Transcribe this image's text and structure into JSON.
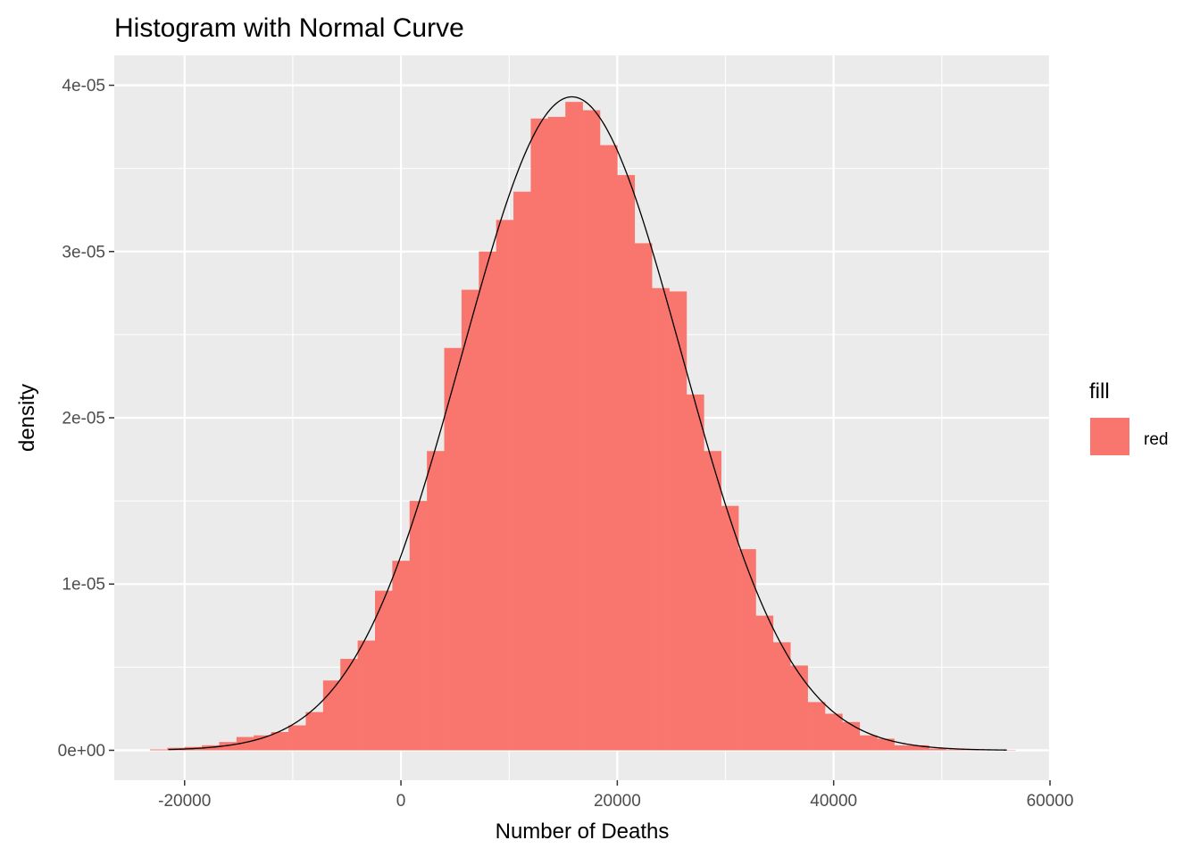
{
  "chart_data": {
    "type": "bar",
    "title": "Histogram with Normal Curve",
    "xlabel": "Number of Deaths",
    "ylabel": "density",
    "xlim": [
      -26500,
      60000
    ],
    "ylim": [
      -1.8e-06,
      4.18e-05
    ],
    "x_ticks": [
      -20000,
      0,
      20000,
      40000,
      60000
    ],
    "x_tick_labels": [
      "-20000",
      "0",
      "20000",
      "40000",
      "60000"
    ],
    "y_ticks": [
      0,
      1e-05,
      2e-05,
      3e-05,
      4e-05
    ],
    "y_tick_labels": [
      "0e+00",
      "1e-05",
      "2e-05",
      "3e-05",
      "4e-05"
    ],
    "grid": true,
    "legend": {
      "title": "fill",
      "position": "right",
      "items": [
        {
          "label": "red",
          "color": "#F8766D"
        }
      ]
    },
    "colors": {
      "bars": "#F8766D",
      "curve": "#000000",
      "panel": "#EBEBEB",
      "grid": "#FFFFFF"
    },
    "bin_width": 1600,
    "histogram": {
      "bin_start": [
        -23200,
        -21600,
        -20000,
        -18400,
        -16800,
        -15200,
        -13600,
        -12000,
        -10400,
        -8800,
        -7200,
        -5600,
        -4000,
        -2400,
        -800,
        800,
        2400,
        4000,
        5600,
        7200,
        8800,
        10400,
        12000,
        13600,
        15200,
        16800,
        18400,
        20000,
        21600,
        23200,
        24800,
        26400,
        28000,
        29600,
        31200,
        32800,
        34400,
        36000,
        37600,
        39200,
        40800,
        42400,
        44000,
        45600,
        47200,
        48800,
        50400,
        52000,
        53600,
        55200
      ],
      "density": [
        5e-08,
        1.5e-07,
        2e-07,
        3e-07,
        5e-07,
        8e-07,
        9e-07,
        1.1e-06,
        1.5e-06,
        2.3e-06,
        4.2e-06,
        5.5e-06,
        6.6e-06,
        9.6e-06,
        1.14e-05,
        1.5e-05,
        1.8e-05,
        2.42e-05,
        2.77e-05,
        3e-05,
        3.19e-05,
        3.36e-05,
        3.8e-05,
        3.81e-05,
        3.9e-05,
        3.85e-05,
        3.64e-05,
        3.46e-05,
        3.05e-05,
        2.78e-05,
        2.76e-05,
        2.14e-05,
        1.8e-05,
        1.47e-05,
        1.21e-05,
        8.1e-06,
        6.5e-06,
        5.1e-06,
        2.9e-06,
        2.2e-06,
        1.7e-06,
        9e-07,
        7e-07,
        3e-07,
        3e-07,
        1e-07,
        5e-08,
        5e-08,
        3e-08,
        2e-08
      ]
    },
    "normal_curve": {
      "mean": 15800,
      "sd": 10150,
      "x_range": [
        -21500,
        56000
      ]
    }
  }
}
